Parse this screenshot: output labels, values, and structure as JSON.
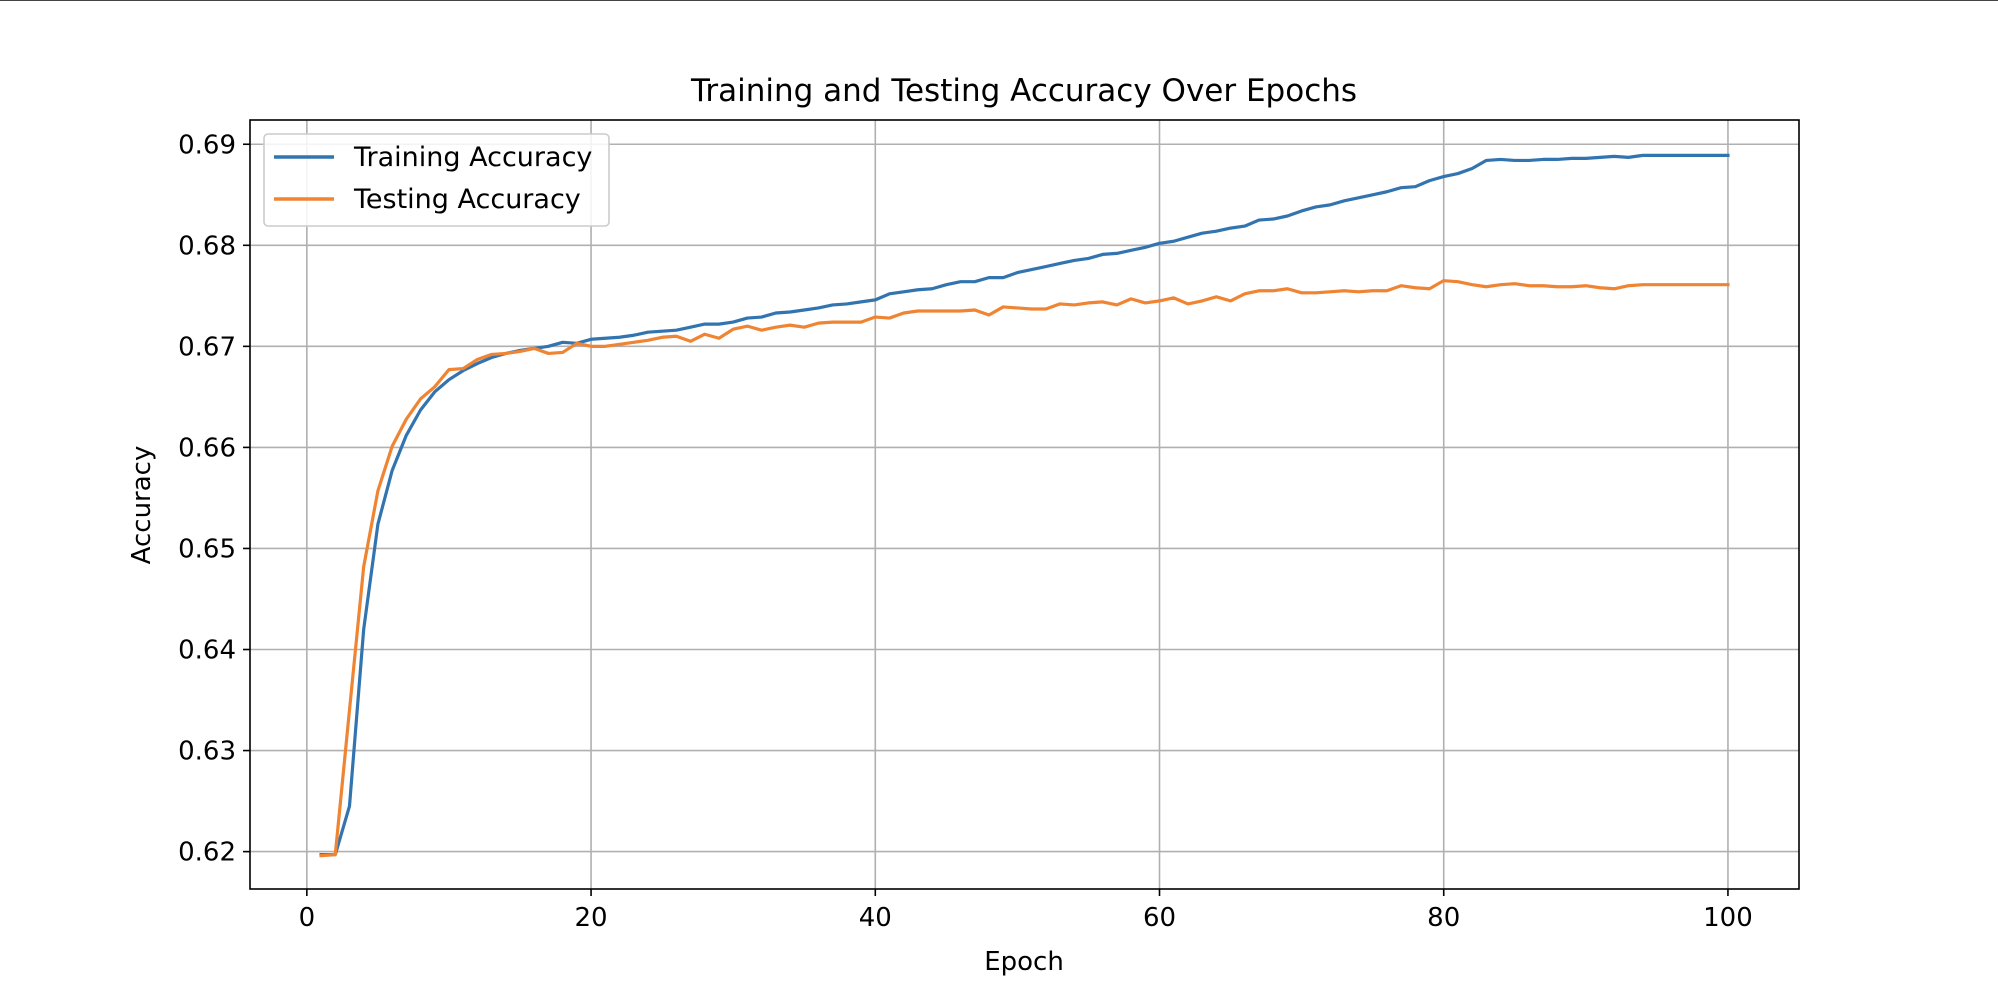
{
  "chart_data": {
    "type": "line",
    "title": "Training and Testing Accuracy Over Epochs",
    "xlabel": "Epoch",
    "ylabel": "Accuracy",
    "xlim": [
      -4,
      105
    ],
    "ylim": [
      0.6163,
      0.6924
    ],
    "xticks": [
      0,
      20,
      40,
      60,
      80,
      100
    ],
    "xtick_labels": [
      "0",
      "20",
      "40",
      "60",
      "80",
      "100"
    ],
    "yticks": [
      0.62,
      0.63,
      0.64,
      0.65,
      0.66,
      0.67,
      0.68,
      0.69
    ],
    "ytick_labels": [
      "0.62",
      "0.63",
      "0.64",
      "0.65",
      "0.66",
      "0.67",
      "0.68",
      "0.69"
    ],
    "grid": true,
    "legend_position": "top-left",
    "x": [
      1,
      2,
      3,
      4,
      5,
      6,
      7,
      8,
      9,
      10,
      11,
      12,
      13,
      14,
      15,
      16,
      17,
      18,
      19,
      20,
      21,
      22,
      23,
      24,
      25,
      26,
      27,
      28,
      29,
      30,
      31,
      32,
      33,
      34,
      35,
      36,
      37,
      38,
      39,
      40,
      41,
      42,
      43,
      44,
      45,
      46,
      47,
      48,
      49,
      50,
      51,
      52,
      53,
      54,
      55,
      56,
      57,
      58,
      59,
      60,
      61,
      62,
      63,
      64,
      65,
      66,
      67,
      68,
      69,
      70,
      71,
      72,
      73,
      74,
      75,
      76,
      77,
      78,
      79,
      80,
      81,
      82,
      83,
      84,
      85,
      86,
      87,
      88,
      89,
      90,
      91,
      92,
      93,
      94,
      95,
      96,
      97,
      98,
      99,
      100
    ],
    "series": [
      {
        "name": "Training Accuracy",
        "color": "#3274b0",
        "values": [
          0.6197,
          0.6197,
          0.6245,
          0.642,
          0.6524,
          0.6577,
          0.6612,
          0.6637,
          0.6655,
          0.6667,
          0.6676,
          0.6683,
          0.6689,
          0.6693,
          0.6696,
          0.6698,
          0.67,
          0.6704,
          0.6703,
          0.6707,
          0.6708,
          0.6709,
          0.6711,
          0.6714,
          0.6715,
          0.6716,
          0.6719,
          0.6722,
          0.6722,
          0.6724,
          0.6728,
          0.6729,
          0.6733,
          0.6734,
          0.6736,
          0.6738,
          0.6741,
          0.6742,
          0.6744,
          0.6746,
          0.6752,
          0.6754,
          0.6756,
          0.6757,
          0.6761,
          0.6764,
          0.6764,
          0.6768,
          0.6768,
          0.6773,
          0.6776,
          0.6779,
          0.6782,
          0.6785,
          0.6787,
          0.6791,
          0.6792,
          0.6795,
          0.6798,
          0.6802,
          0.6804,
          0.6808,
          0.6812,
          0.6814,
          0.6817,
          0.6819,
          0.6825,
          0.6826,
          0.6829,
          0.6834,
          0.6838,
          0.684,
          0.6844,
          0.6847,
          0.685,
          0.6853,
          0.6857,
          0.6858,
          0.6864,
          0.6868,
          0.6871,
          0.6876,
          0.6884,
          0.6885,
          0.6884,
          0.6884,
          0.6885,
          0.6885,
          0.6886,
          0.6886,
          0.6887,
          0.6888,
          0.6887,
          0.6889,
          0.6889,
          0.6889,
          0.6889,
          0.6889,
          0.6889,
          0.6889
        ]
      },
      {
        "name": "Testing Accuracy",
        "color": "#ef8432",
        "values": [
          0.6196,
          0.6197,
          0.634,
          0.6482,
          0.6557,
          0.6601,
          0.6628,
          0.6648,
          0.666,
          0.6677,
          0.6678,
          0.6687,
          0.6692,
          0.6693,
          0.6695,
          0.6698,
          0.6693,
          0.6694,
          0.6703,
          0.67,
          0.67,
          0.6702,
          0.6704,
          0.6706,
          0.6709,
          0.671,
          0.6705,
          0.6712,
          0.6708,
          0.6717,
          0.672,
          0.6716,
          0.6719,
          0.6721,
          0.6719,
          0.6723,
          0.6724,
          0.6724,
          0.6724,
          0.6729,
          0.6728,
          0.6733,
          0.6735,
          0.6735,
          0.6735,
          0.6735,
          0.6736,
          0.6731,
          0.6739,
          0.6738,
          0.6737,
          0.6737,
          0.6742,
          0.6741,
          0.6743,
          0.6744,
          0.6741,
          0.6747,
          0.6743,
          0.6745,
          0.6748,
          0.6742,
          0.6745,
          0.6749,
          0.6745,
          0.6752,
          0.6755,
          0.6755,
          0.6757,
          0.6753,
          0.6753,
          0.6754,
          0.6755,
          0.6754,
          0.6755,
          0.6755,
          0.676,
          0.6758,
          0.6757,
          0.6765,
          0.6764,
          0.6761,
          0.6759,
          0.6761,
          0.6762,
          0.676,
          0.676,
          0.6759,
          0.6759,
          0.676,
          0.6758,
          0.6757,
          0.676,
          0.6761,
          0.6761,
          0.6761,
          0.6761,
          0.6761,
          0.6761,
          0.6761
        ]
      }
    ]
  }
}
